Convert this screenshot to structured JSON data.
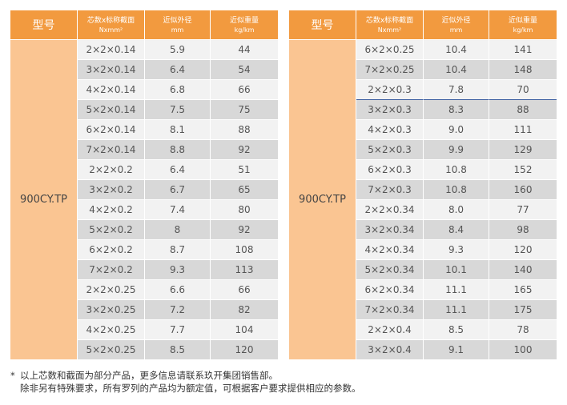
{
  "headers": {
    "model": "型号",
    "spec_line1": "芯数x标称截面",
    "spec_line2": "Nxmm²",
    "diameter_line1": "近似外径",
    "diameter_line2": "mm",
    "weight_line1": "近似重量",
    "weight_line2": "kg/km"
  },
  "left_table": {
    "model": "900CY.TP",
    "rows": [
      {
        "spec": "2×2×0.14",
        "diameter": "5.9",
        "weight": "44"
      },
      {
        "spec": "3×2×0.14",
        "diameter": "6.4",
        "weight": "54"
      },
      {
        "spec": "4×2×0.14",
        "diameter": "6.8",
        "weight": "66"
      },
      {
        "spec": "5×2×0.14",
        "diameter": "7.5",
        "weight": "75"
      },
      {
        "spec": "6×2×0.14",
        "diameter": "8.1",
        "weight": "88"
      },
      {
        "spec": "7×2×0.14",
        "diameter": "8.8",
        "weight": "92"
      },
      {
        "spec": "2×2×0.2",
        "diameter": "6.4",
        "weight": "51"
      },
      {
        "spec": "3×2×0.2",
        "diameter": "6.7",
        "weight": "65"
      },
      {
        "spec": "4×2×0.2",
        "diameter": "7.4",
        "weight": "80"
      },
      {
        "spec": "5×2×0.2",
        "diameter": "8",
        "weight": "92"
      },
      {
        "spec": "6×2×0.2",
        "diameter": "8.7",
        "weight": "108"
      },
      {
        "spec": "7×2×0.2",
        "diameter": "9.3",
        "weight": "113"
      },
      {
        "spec": "2×2×0.25",
        "diameter": "6.6",
        "weight": "66"
      },
      {
        "spec": "3×2×0.25",
        "diameter": "7.2",
        "weight": "82"
      },
      {
        "spec": "4×2×0.25",
        "diameter": "7.7",
        "weight": "104"
      },
      {
        "spec": "5×2×0.25",
        "diameter": "8.5",
        "weight": "120"
      }
    ]
  },
  "right_table": {
    "model": "900CY.TP",
    "rows": [
      {
        "spec": "6×2×0.25",
        "diameter": "10.4",
        "weight": "141"
      },
      {
        "spec": "7×2×0.25",
        "diameter": "10.4",
        "weight": "148"
      },
      {
        "spec": "2×2×0.3",
        "diameter": "7.8",
        "weight": "70"
      },
      {
        "spec": "3×2×0.3",
        "diameter": "8.3",
        "weight": "88"
      },
      {
        "spec": "4×2×0.3",
        "diameter": "9.0",
        "weight": "111"
      },
      {
        "spec": "5×2×0.3",
        "diameter": "9.9",
        "weight": "129"
      },
      {
        "spec": "6×2×0.3",
        "diameter": "10.8",
        "weight": "152"
      },
      {
        "spec": "7×2×0.3",
        "diameter": "10.8",
        "weight": "160"
      },
      {
        "spec": "2×2×0.34",
        "diameter": "8.0",
        "weight": "77"
      },
      {
        "spec": "3×2×0.34",
        "diameter": "8.4",
        "weight": "98"
      },
      {
        "spec": "4×2×0.34",
        "diameter": "9.3",
        "weight": "120"
      },
      {
        "spec": "5×2×0.34",
        "diameter": "10.1",
        "weight": "140"
      },
      {
        "spec": "6×2×0.34",
        "diameter": "11.1",
        "weight": "165"
      },
      {
        "spec": "7×2×0.34",
        "diameter": "11.1",
        "weight": "175"
      },
      {
        "spec": "2×2×0.4",
        "diameter": "8.5",
        "weight": "78"
      },
      {
        "spec": "3×2×0.4",
        "diameter": "9.1",
        "weight": "100"
      }
    ]
  },
  "notes": {
    "marker": "*",
    "line1": "以上芯数和截面为部分产品，更多信息请联系玖开集团销售部。",
    "line2": "除非另有特殊要求，所有罗列的产品均为额定值，可根据客户要求提供相应的参数。"
  },
  "colors": {
    "header_bg": "#f29a3f",
    "model_bg": "#fac592",
    "row_light": "#f2f2f2",
    "row_dark": "#d8d8d8"
  }
}
